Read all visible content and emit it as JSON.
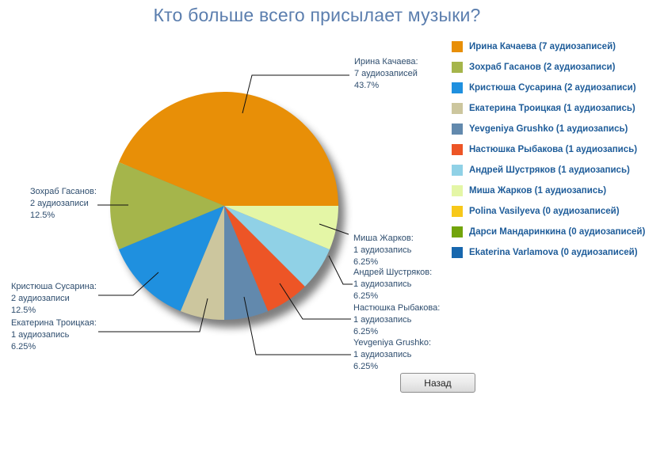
{
  "title": "Кто больше всего присылает музыки?",
  "back_button": {
    "label": "Назад"
  },
  "chart_data": {
    "type": "pie",
    "title": "Кто больше всего присылает музыки?",
    "total_value": 16,
    "start_angle_deg": 0,
    "direction": "counterclockwise",
    "legend_position": "right",
    "slices": [
      {
        "name": "Ирина Качаева",
        "value": 7,
        "count_label": "7 аудиозаписей",
        "percent_label": "43.7%",
        "color": "#E88F07"
      },
      {
        "name": "Зохраб Гасанов",
        "value": 2,
        "count_label": "2 аудиозаписи",
        "percent_label": "12.5%",
        "color": "#A5B54B"
      },
      {
        "name": "Кристюша Сусарина",
        "value": 2,
        "count_label": "2 аудиозаписи",
        "percent_label": "12.5%",
        "color": "#1F90DF"
      },
      {
        "name": "Екатерина Троицкая",
        "value": 1,
        "count_label": "1 аудиозапись",
        "percent_label": "6.25%",
        "color": "#CCC69E"
      },
      {
        "name": "Yevgeniya Grushko",
        "value": 1,
        "count_label": "1 аудиозапись",
        "percent_label": "6.25%",
        "color": "#6289AD"
      },
      {
        "name": "Настюшка Рыбакова",
        "value": 1,
        "count_label": "1 аудиозапись",
        "percent_label": "6.25%",
        "color": "#ED5526"
      },
      {
        "name": "Андрей Шустряков",
        "value": 1,
        "count_label": "1 аудиозапись",
        "percent_label": "6.25%",
        "color": "#90D1E6"
      },
      {
        "name": "Миша Жарков",
        "value": 1,
        "count_label": "1 аудиозапись",
        "percent_label": "6.25%",
        "color": "#E4F6A6"
      }
    ],
    "legend": [
      {
        "label": "Ирина Качаева (7 аудиозаписей)",
        "color": "#E88F07"
      },
      {
        "label": "Зохраб Гасанов (2 аудиозаписи)",
        "color": "#A5B54B"
      },
      {
        "label": "Кристюша Сусарина (2 аудиозаписи)",
        "color": "#1F90DF"
      },
      {
        "label": "Екатерина Троицкая (1 аудиозапись)",
        "color": "#CCC69E"
      },
      {
        "label": "Yevgeniya Grushko (1 аудиозапись)",
        "color": "#6289AD"
      },
      {
        "label": "Настюшка Рыбакова (1 аудиозапись)",
        "color": "#ED5526"
      },
      {
        "label": "Андрей Шустряков (1 аудиозапись)",
        "color": "#90D1E6"
      },
      {
        "label": "Миша Жарков (1 аудиозапись)",
        "color": "#E4F6A6"
      },
      {
        "label": "Polina Vasilyeva (0 аудиозаписей)",
        "color": "#F7C81A"
      },
      {
        "label": "Дарси Мандаринкина (0 аудиозаписей)",
        "color": "#72A40B"
      },
      {
        "label": "Ekaterina Varlamova (0 аудиозаписей)",
        "color": "#1767AE"
      }
    ]
  }
}
